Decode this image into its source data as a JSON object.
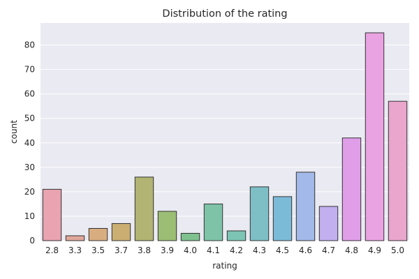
{
  "chart_data": {
    "type": "bar",
    "title": "Distribution of the rating",
    "xlabel": "rating",
    "ylabel": "count",
    "categories": [
      "2.8",
      "3.3",
      "3.5",
      "3.7",
      "3.8",
      "3.9",
      "4.0",
      "4.1",
      "4.2",
      "4.3",
      "4.5",
      "4.6",
      "4.7",
      "4.8",
      "4.9",
      "5.0"
    ],
    "values": [
      21,
      2,
      5,
      7,
      26,
      12,
      3,
      15,
      4,
      22,
      18,
      28,
      14,
      42,
      85,
      57
    ],
    "colors": [
      "#e9a3b1",
      "#e0a89a",
      "#d8ad7f",
      "#caae72",
      "#b1b472",
      "#9bbd74",
      "#7fc18f",
      "#7ec3a8",
      "#7dc4b4",
      "#7ebfc6",
      "#7bbbd8",
      "#a2b9e9",
      "#c2aff0",
      "#e09ee9",
      "#eaa3e2",
      "#eaa6cd"
    ],
    "ylim": [
      0,
      89
    ],
    "yticks": [
      0,
      10,
      20,
      30,
      40,
      50,
      60,
      70,
      80
    ],
    "grid": true,
    "background": "#eaeaf2",
    "edgecolor": "#333333"
  }
}
